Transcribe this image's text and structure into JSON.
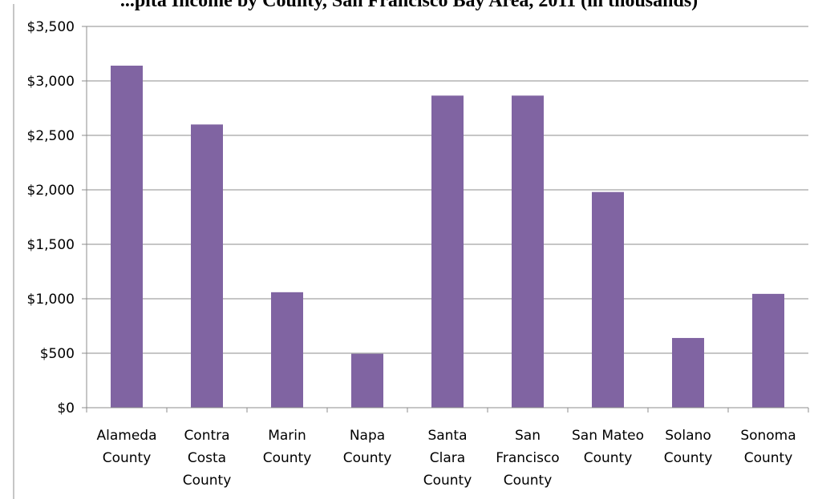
{
  "chart_data": {
    "type": "bar",
    "title": "...pita Income by County, San Francisco Bay Area, 2011 (in thousands)",
    "categories": [
      [
        "Alameda",
        "County"
      ],
      [
        "Contra",
        "Costa",
        "County"
      ],
      [
        "Marin",
        "County"
      ],
      [
        "Napa",
        "County"
      ],
      [
        "Santa",
        "Clara",
        "County"
      ],
      [
        "San",
        "Francisco",
        "County"
      ],
      [
        "San Mateo",
        "County"
      ],
      [
        "Solano",
        "County"
      ],
      [
        "Sonoma",
        "County"
      ]
    ],
    "values": [
      3140,
      2600,
      1060,
      495,
      2865,
      2865,
      1980,
      640,
      1045
    ],
    "ylim": [
      0,
      3500
    ],
    "y_ticks": [
      0,
      500,
      1000,
      1500,
      2000,
      2500,
      3000,
      3500
    ],
    "y_tick_labels": [
      "$0",
      "$500",
      "$1,000",
      "$1,500",
      "$2,000",
      "$2,500",
      "$3,000",
      "$3,500"
    ],
    "grid": true,
    "legend": "none",
    "xlabel": "",
    "ylabel": "",
    "bar_color": "#8064a2"
  }
}
